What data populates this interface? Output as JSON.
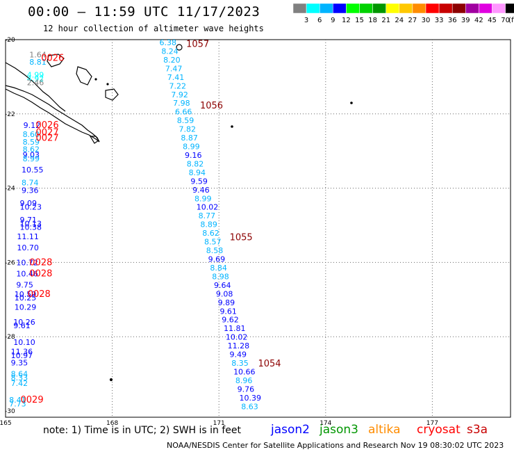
{
  "header": {
    "title": "00:00 — 11:59 UTC 11/17/2023",
    "subtitle": "12 hour collection of altimeter wave heights"
  },
  "colorbar": {
    "unit": "(ft)",
    "colors": [
      "#808080",
      "#00ffff",
      "#00b4ff",
      "#0000ff",
      "#00ff00",
      "#00d200",
      "#009600",
      "#ffff00",
      "#ffc800",
      "#ff8c00",
      "#ff0000",
      "#c80000",
      "#8c0000",
      "#a000a0",
      "#e000e0",
      "#ff96ff",
      "#000000"
    ],
    "labels": [
      "3",
      "6",
      "9",
      "12",
      "15",
      "18",
      "21",
      "24",
      "27",
      "30",
      "33",
      "36",
      "39",
      "42",
      "45",
      "70"
    ]
  },
  "axes": {
    "lon_ticks": [
      "165",
      "168",
      "171",
      "174",
      "177"
    ],
    "lat_ticks": [
      "-20",
      "-22",
      "-24",
      "-26",
      "-28",
      "-30"
    ]
  },
  "passes": {
    "east": {
      "start_lon": 169.6,
      "end_lon": 171.9,
      "start_lat": -20.0,
      "end_lat": -29.8,
      "values": [
        "6.38",
        "8.24",
        "8.20",
        "7.47",
        "7.41",
        "7.22",
        "7.92",
        "7.98",
        "6.66",
        "8.59",
        "7.82",
        "8.87",
        "8.99",
        "9.16",
        "8.82",
        "8.94",
        "9.59",
        "9.46",
        "8.99",
        "10.02",
        "8.77",
        "8.89",
        "8.62",
        "8.57",
        "8.58",
        "9.69",
        "8.84",
        "8.98",
        "9.64",
        "9.08",
        "9.89",
        "9.61",
        "9.62",
        "11.81",
        "10.02",
        "11.28",
        "9.49",
        "8.35",
        "10.66",
        "8.96",
        "9.76",
        "10.39",
        "8.63"
      ],
      "times": [
        {
          "label": "1057",
          "lat": -20.05
        },
        {
          "label": "1056",
          "lat": -21.7
        },
        {
          "label": "1055",
          "lat": -25.25
        },
        {
          "label": "1054",
          "lat": -28.65
        }
      ]
    },
    "west": {
      "values": [
        {
          "v": "1.64",
          "lon": 165.67,
          "lat": -20.4
        },
        {
          "v": "8.81",
          "lon": 165.67,
          "lat": -20.6
        },
        {
          "v": "4.99",
          "lon": 165.6,
          "lat": -20.95
        },
        {
          "v": "4.92",
          "lon": 165.6,
          "lat": -21.05
        },
        {
          "v": "2.46",
          "lon": 165.6,
          "lat": -21.15
        },
        {
          "v": "9.12",
          "lon": 165.5,
          "lat": -22.3
        },
        {
          "v": "8.60",
          "lon": 165.48,
          "lat": -22.55
        },
        {
          "v": "8.59",
          "lon": 165.48,
          "lat": -22.75
        },
        {
          "v": "8.62",
          "lon": 165.48,
          "lat": -22.95
        },
        {
          "v": "9.03",
          "lon": 165.48,
          "lat": -23.1
        },
        {
          "v": "8.99",
          "lon": 165.48,
          "lat": -23.2
        },
        {
          "v": "10.55",
          "lon": 165.45,
          "lat": -23.5
        },
        {
          "v": "8.74",
          "lon": 165.45,
          "lat": -23.85
        },
        {
          "v": "9.36",
          "lon": 165.45,
          "lat": -24.05
        },
        {
          "v": "9.09",
          "lon": 165.4,
          "lat": -24.4
        },
        {
          "v": "10.23",
          "lon": 165.4,
          "lat": -24.5
        },
        {
          "v": "9.71",
          "lon": 165.4,
          "lat": -24.85
        },
        {
          "v": "10.13",
          "lon": 165.4,
          "lat": -24.95
        },
        {
          "v": "10.38",
          "lon": 165.4,
          "lat": -25.05
        },
        {
          "v": "11.11",
          "lon": 165.32,
          "lat": -25.3
        },
        {
          "v": "10.70",
          "lon": 165.32,
          "lat": -25.6
        },
        {
          "v": "10.72",
          "lon": 165.3,
          "lat": -26.0
        },
        {
          "v": "10.46",
          "lon": 165.3,
          "lat": -26.3
        },
        {
          "v": "9.75",
          "lon": 165.3,
          "lat": -26.6
        },
        {
          "v": "10.59",
          "lon": 165.25,
          "lat": -26.85
        },
        {
          "v": "10.25",
          "lon": 165.25,
          "lat": -26.95
        },
        {
          "v": "10.29",
          "lon": 165.25,
          "lat": -27.2
        },
        {
          "v": "10.26",
          "lon": 165.22,
          "lat": -27.6
        },
        {
          "v": "9.61",
          "lon": 165.22,
          "lat": -27.7
        },
        {
          "v": "10.10",
          "lon": 165.22,
          "lat": -28.15
        },
        {
          "v": "11.36",
          "lon": 165.15,
          "lat": -28.4
        },
        {
          "v": "10.97",
          "lon": 165.15,
          "lat": -28.5
        },
        {
          "v": "9.35",
          "lon": 165.15,
          "lat": -28.7
        },
        {
          "v": "8.64",
          "lon": 165.15,
          "lat": -29.0
        },
        {
          "v": "8.33",
          "lon": 165.15,
          "lat": -29.1
        },
        {
          "v": "7.42",
          "lon": 165.15,
          "lat": -29.25
        },
        {
          "v": "8.41",
          "lon": 165.1,
          "lat": -29.7
        },
        {
          "v": "7.73",
          "lon": 165.1,
          "lat": -29.8
        }
      ],
      "times": [
        {
          "label": "0026",
          "lon": 166.0,
          "lat": -20.5
        },
        {
          "label": "0026",
          "lon": 165.85,
          "lat": -22.3
        },
        {
          "label": "0027",
          "lon": 165.85,
          "lat": -22.5
        },
        {
          "label": "0027",
          "lon": 165.85,
          "lat": -22.65
        },
        {
          "label": "0028",
          "lon": 165.67,
          "lat": -26.0
        },
        {
          "label": "0028",
          "lon": 165.67,
          "lat": -26.3
        },
        {
          "label": "0028",
          "lon": 165.62,
          "lat": -26.85
        },
        {
          "label": "0029",
          "lon": 165.42,
          "lat": -29.7
        }
      ]
    }
  },
  "footer": {
    "note": "note: 1) Time is in UTC; 2) SWH is in feet",
    "legend": [
      {
        "label": "jason2",
        "color": "#0000ff"
      },
      {
        "label": "jason3",
        "color": "#009600"
      },
      {
        "label": "altika",
        "color": "#ff8c00"
      },
      {
        "label": "cryosat",
        "color": "#ff0000"
      },
      {
        "label": "s3a",
        "color": "#c80000"
      }
    ],
    "credit": "NOAA/NESDIS Center for Satellite Applications and Research   Nov 19 08:30:02 UTC 2023"
  }
}
